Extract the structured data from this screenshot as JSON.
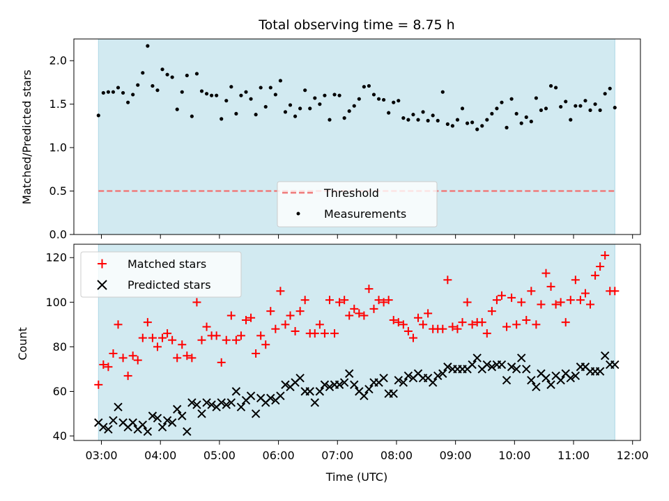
{
  "chart_data": [
    {
      "type": "scatter",
      "title": "Total observing time = 8.75 h",
      "ylabel": "Matched/Predicted stars",
      "ylim": [
        0,
        2.25
      ],
      "yticks": [
        "0.0",
        "0.5",
        "1.0",
        "1.5",
        "2.0"
      ],
      "shaded_span": [
        "02:57",
        "11:42"
      ],
      "threshold": 0.5,
      "legend": {
        "position": "lower-center",
        "entries": [
          "Threshold",
          "Measurements"
        ]
      },
      "colors": {
        "shade": "#add8e6",
        "threshold": "#ef7b7b",
        "points": "#000000"
      },
      "x": [
        "02:57",
        "03:02",
        "03:07",
        "03:12",
        "03:17",
        "03:22",
        "03:27",
        "03:32",
        "03:37",
        "03:42",
        "03:47",
        "03:52",
        "03:57",
        "04:02",
        "04:07",
        "04:12",
        "04:17",
        "04:22",
        "04:27",
        "04:32",
        "04:37",
        "04:42",
        "04:47",
        "04:52",
        "04:57",
        "05:02",
        "05:07",
        "05:12",
        "05:17",
        "05:22",
        "05:27",
        "05:32",
        "05:37",
        "05:42",
        "05:47",
        "05:52",
        "05:57",
        "06:02",
        "06:07",
        "06:12",
        "06:17",
        "06:22",
        "06:27",
        "06:32",
        "06:37",
        "06:42",
        "06:47",
        "06:52",
        "06:57",
        "07:02",
        "07:07",
        "07:12",
        "07:17",
        "07:22",
        "07:27",
        "07:32",
        "07:37",
        "07:42",
        "07:47",
        "07:52",
        "07:57",
        "08:02",
        "08:07",
        "08:12",
        "08:17",
        "08:22",
        "08:27",
        "08:32",
        "08:37",
        "08:42",
        "08:47",
        "08:52",
        "08:57",
        "09:02",
        "09:07",
        "09:12",
        "09:17",
        "09:22",
        "09:27",
        "09:32",
        "09:37",
        "09:42",
        "09:47",
        "09:52",
        "09:57",
        "10:02",
        "10:07",
        "10:12",
        "10:17",
        "10:22",
        "10:27",
        "10:32",
        "10:37",
        "10:42",
        "10:47",
        "10:52",
        "10:57",
        "11:02",
        "11:07",
        "11:12",
        "11:17",
        "11:22",
        "11:27",
        "11:32",
        "11:37",
        "11:42"
      ],
      "series": [
        {
          "name": "Measurements",
          "values": [
            1.37,
            1.63,
            1.64,
            1.64,
            1.69,
            1.63,
            1.52,
            1.61,
            1.72,
            1.86,
            2.17,
            1.71,
            1.66,
            1.9,
            1.84,
            1.81,
            1.44,
            1.64,
            1.83,
            1.36,
            1.85,
            1.65,
            1.62,
            1.6,
            1.6,
            1.33,
            1.54,
            1.7,
            1.39,
            1.6,
            1.64,
            1.56,
            1.38,
            1.69,
            1.47,
            1.69,
            1.61,
            1.77,
            1.41,
            1.49,
            1.36,
            1.45,
            1.66,
            1.45,
            1.57,
            1.5,
            1.6,
            1.32,
            1.61,
            1.6,
            1.34,
            1.42,
            1.48,
            1.56,
            1.7,
            1.71,
            1.61,
            1.56,
            1.55,
            1.4,
            1.52,
            1.54,
            1.34,
            1.32,
            1.38,
            1.32,
            1.41,
            1.31,
            1.37,
            1.31,
            1.64,
            1.27,
            1.25,
            1.32,
            1.45,
            1.28,
            1.29,
            1.21,
            1.25,
            1.32,
            1.39,
            1.45,
            1.52,
            1.23,
            1.56,
            1.39,
            1.28,
            1.35,
            1.3,
            1.57,
            1.43,
            1.45,
            1.71,
            1.69,
            1.47,
            1.53,
            1.32,
            1.48,
            1.48,
            1.54,
            1.43,
            1.5,
            1.43,
            1.62,
            1.68,
            1.46
          ]
        },
        {
          "name": "Threshold",
          "values": [
            0.5
          ]
        }
      ]
    },
    {
      "type": "scatter",
      "xlabel": "Time (UTC)",
      "ylabel": "Count",
      "ylim": [
        38,
        126
      ],
      "yticks": [
        "40",
        "60",
        "80",
        "100",
        "120"
      ],
      "xticks": [
        "03:00",
        "04:00",
        "05:00",
        "06:00",
        "07:00",
        "08:00",
        "09:00",
        "10:00",
        "11:00",
        "12:00"
      ],
      "legend": {
        "position": "top-left",
        "entries": [
          "Matched stars",
          "Predicted stars"
        ]
      },
      "colors": {
        "shade": "#add8e6",
        "matched": "#ff0000",
        "predicted": "#000000"
      },
      "x": [
        "02:57",
        "03:02",
        "03:07",
        "03:12",
        "03:17",
        "03:22",
        "03:27",
        "03:32",
        "03:37",
        "03:42",
        "03:47",
        "03:52",
        "03:57",
        "04:02",
        "04:07",
        "04:12",
        "04:17",
        "04:22",
        "04:27",
        "04:32",
        "04:37",
        "04:42",
        "04:47",
        "04:52",
        "04:57",
        "05:02",
        "05:07",
        "05:12",
        "05:17",
        "05:22",
        "05:27",
        "05:32",
        "05:37",
        "05:42",
        "05:47",
        "05:52",
        "05:57",
        "06:02",
        "06:07",
        "06:12",
        "06:17",
        "06:22",
        "06:27",
        "06:32",
        "06:37",
        "06:42",
        "06:47",
        "06:52",
        "06:57",
        "07:02",
        "07:07",
        "07:12",
        "07:17",
        "07:22",
        "07:27",
        "07:32",
        "07:37",
        "07:42",
        "07:47",
        "07:52",
        "07:57",
        "08:02",
        "08:07",
        "08:12",
        "08:17",
        "08:22",
        "08:27",
        "08:32",
        "08:37",
        "08:42",
        "08:47",
        "08:52",
        "08:57",
        "09:02",
        "09:07",
        "09:12",
        "09:17",
        "09:22",
        "09:27",
        "09:32",
        "09:37",
        "09:42",
        "09:47",
        "09:52",
        "09:57",
        "10:02",
        "10:07",
        "10:12",
        "10:17",
        "10:22",
        "10:27",
        "10:32",
        "10:37",
        "10:42",
        "10:47",
        "10:52",
        "10:57",
        "11:02",
        "11:07",
        "11:12",
        "11:17",
        "11:22",
        "11:27",
        "11:32",
        "11:37",
        "11:42"
      ],
      "series": [
        {
          "name": "Matched stars",
          "values": [
            63,
            72,
            71,
            77,
            90,
            75,
            67,
            76,
            74,
            84,
            91,
            84,
            80,
            84,
            86,
            83,
            75,
            81,
            76,
            75,
            100,
            83,
            89,
            85,
            85,
            73,
            83,
            94,
            83,
            85,
            92,
            93,
            77,
            85,
            81,
            96,
            88,
            105,
            90,
            94,
            87,
            96,
            101,
            86,
            86,
            90,
            86,
            101,
            86,
            100,
            101,
            94,
            97,
            95,
            94,
            106,
            97,
            101,
            100,
            101,
            92,
            91,
            90,
            87,
            84,
            93,
            90,
            95,
            88,
            88,
            88,
            110,
            89,
            88,
            91,
            100,
            90,
            91,
            91,
            86,
            96,
            101,
            103,
            89,
            102,
            90,
            100,
            92,
            105,
            90,
            99,
            113,
            107,
            99,
            100,
            91,
            101,
            110,
            101,
            104,
            99,
            112,
            116,
            121,
            105,
            105
          ]
        },
        {
          "name": "Predicted stars",
          "values": [
            46,
            44,
            43,
            47,
            53,
            46,
            44,
            46,
            43,
            45,
            42,
            49,
            48,
            44,
            47,
            46,
            52,
            49,
            42,
            55,
            54,
            50,
            55,
            54,
            53,
            55,
            54,
            55,
            60,
            53,
            56,
            58,
            50,
            57,
            55,
            57,
            56,
            58,
            63,
            62,
            64,
            66,
            60,
            60,
            55,
            60,
            63,
            62,
            63,
            63,
            64,
            68,
            63,
            60,
            58,
            61,
            64,
            64,
            66,
            59,
            59,
            65,
            64,
            67,
            66,
            68,
            66,
            66,
            64,
            67,
            68,
            71,
            70,
            70,
            70,
            70,
            72,
            75,
            70,
            72,
            71,
            72,
            72,
            65,
            71,
            70,
            75,
            70,
            65,
            62,
            68,
            66,
            63,
            67,
            65,
            68,
            66,
            67,
            71,
            71,
            69,
            69,
            69,
            76,
            72,
            72
          ]
        }
      ]
    }
  ]
}
